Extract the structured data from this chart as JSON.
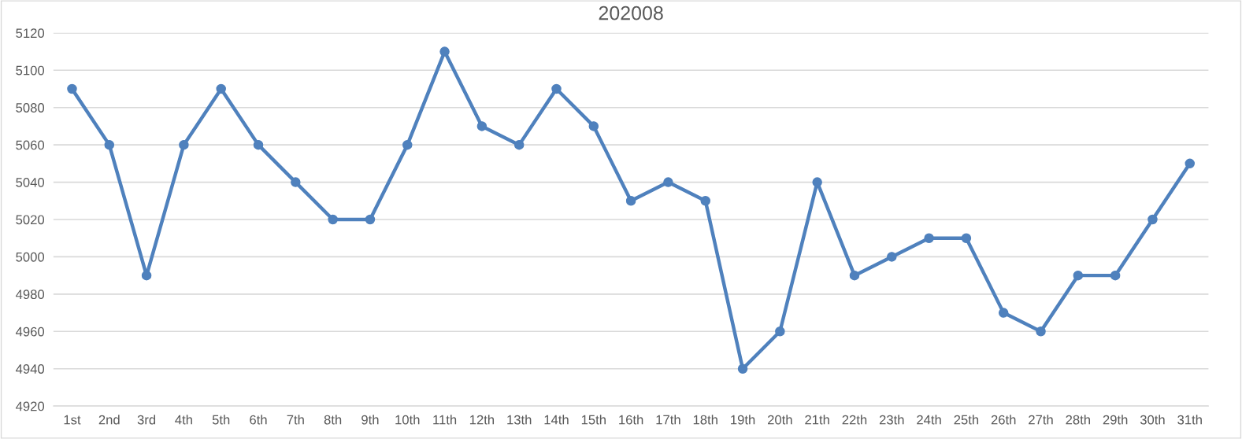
{
  "chart_data": {
    "type": "line",
    "title": "202008",
    "categories": [
      "1st",
      "2nd",
      "3rd",
      "4th",
      "5th",
      "6th",
      "7th",
      "8th",
      "9th",
      "10th",
      "11th",
      "12th",
      "13th",
      "14th",
      "15th",
      "16th",
      "17th",
      "18th",
      "19th",
      "20th",
      "21th",
      "22th",
      "23th",
      "24th",
      "25th",
      "26th",
      "27th",
      "28th",
      "29th",
      "30th",
      "31th"
    ],
    "series": [
      {
        "color": "#4f81bd",
        "values": [
          5090,
          5060,
          4990,
          5060,
          5090,
          5060,
          5040,
          5020,
          5020,
          5060,
          5110,
          5070,
          5060,
          5090,
          5070,
          5030,
          5040,
          5030,
          4940,
          4960,
          5040,
          4990,
          5000,
          5010,
          5010,
          4970,
          4960,
          4990,
          4990,
          5020,
          5050
        ]
      }
    ],
    "ylim": [
      4920,
      5120
    ],
    "yticks": [
      4920,
      4940,
      4960,
      4980,
      5000,
      5020,
      5040,
      5060,
      5080,
      5100,
      5120
    ],
    "grid": "y",
    "marker": "circle",
    "line_style": "solid"
  }
}
